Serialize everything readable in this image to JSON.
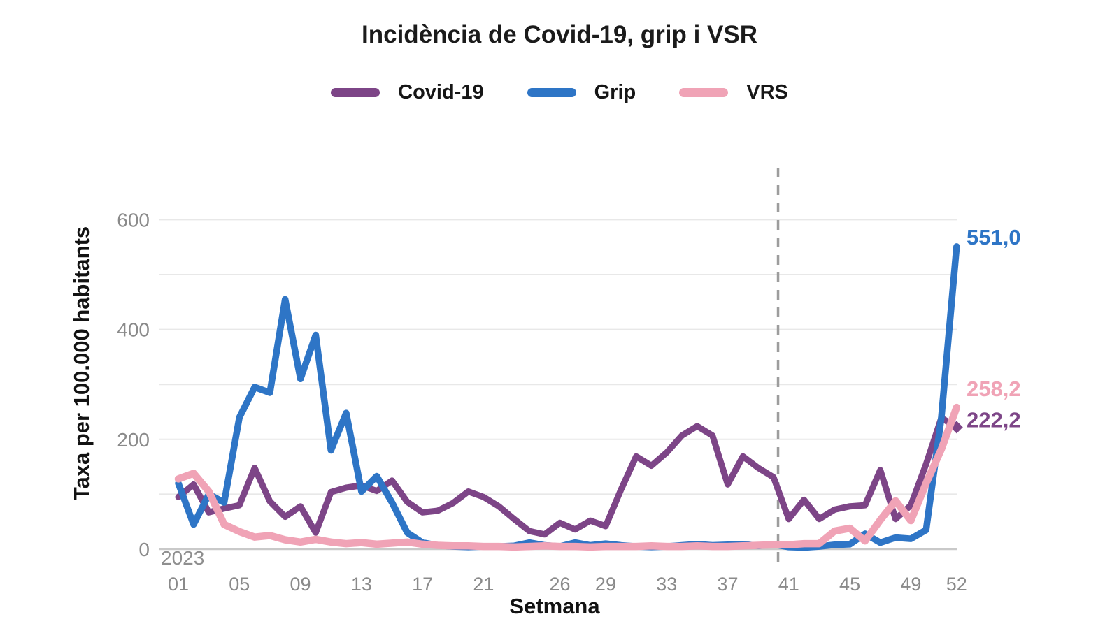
{
  "header": {
    "title": "Incidència de Covid-19, grip i VSR"
  },
  "legend": {
    "items": [
      {
        "label": "Covid-19",
        "color": "#7d4587"
      },
      {
        "label": "Grip",
        "color": "#2e75c6"
      },
      {
        "label": "VRS",
        "color": "#f0a3b6"
      }
    ]
  },
  "chart_data": {
    "type": "line",
    "title": "Incidència de Covid-19, grip i VSR",
    "xlabel": "Setmana",
    "ylabel": "Taxa per 100.000 habitants",
    "year_label": "2023",
    "x_range_weeks": [
      1,
      52
    ],
    "x_tick_weeks": [
      1,
      5,
      9,
      13,
      17,
      21,
      26,
      29,
      33,
      37,
      41,
      45,
      49,
      52
    ],
    "x_tick_labels": [
      "01",
      "05",
      "09",
      "13",
      "17",
      "21",
      "26",
      "29",
      "33",
      "37",
      "41",
      "45",
      "49",
      "52"
    ],
    "ylim": [
      0,
      600
    ],
    "y_tick_values": [
      0,
      200,
      400,
      600
    ],
    "grid_interval": 100,
    "grid": "horizontal-light-gray",
    "legend_position": "top-center",
    "dashed_vline_week": 40.3,
    "dashed_vline_color": "#9d9d9d",
    "axis_tick_color": "#8a8a8a",
    "series": [
      {
        "name": "Covid-19",
        "color": "#7d4587",
        "end_label": "222,2",
        "end_marker": "diamond",
        "values": [
          95,
          118,
          67,
          74,
          80,
          148,
          87,
          59,
          78,
          30,
          104,
          112,
          116,
          106,
          125,
          86,
          67,
          70,
          84,
          105,
          95,
          78,
          55,
          33,
          27,
          48,
          36,
          52,
          42,
          108,
          169,
          152,
          176,
          207,
          224,
          207,
          118,
          169,
          148,
          131,
          55,
          90,
          55,
          72,
          78,
          80,
          144,
          55,
          80,
          155,
          239,
          222.2
        ]
      },
      {
        "name": "Grip",
        "color": "#2e75c6",
        "end_label": "551,0",
        "end_marker": "none",
        "values": [
          120,
          45,
          100,
          85,
          240,
          295,
          285,
          455,
          310,
          390,
          180,
          248,
          105,
          133,
          85,
          30,
          12,
          7,
          5,
          4,
          5,
          5,
          6,
          12,
          7,
          5,
          12,
          7,
          10,
          7,
          5,
          4,
          5,
          7,
          9,
          7,
          8,
          9,
          6,
          9,
          4,
          3,
          5,
          8,
          9,
          28,
          12,
          21,
          19,
          35,
          240,
          551
        ]
      },
      {
        "name": "VRS",
        "color": "#f0a3b6",
        "end_label": "258,2",
        "end_marker": "none",
        "values": [
          128,
          138,
          105,
          45,
          32,
          22,
          25,
          17,
          13,
          18,
          13,
          10,
          12,
          9,
          11,
          13,
          9,
          7,
          6,
          6,
          5,
          5,
          4,
          5,
          6,
          5,
          5,
          4,
          5,
          5,
          5,
          6,
          5,
          5,
          6,
          5,
          5,
          6,
          7,
          8,
          8,
          10,
          10,
          33,
          38,
          15,
          53,
          88,
          52,
          120,
          182,
          258.2
        ]
      }
    ]
  }
}
